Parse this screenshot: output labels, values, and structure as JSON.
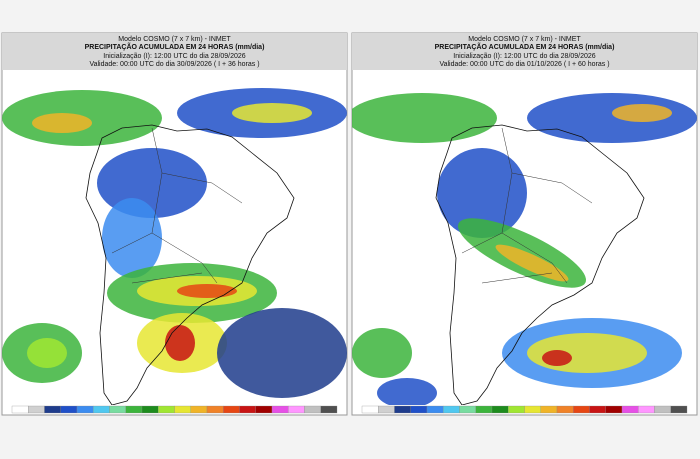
{
  "panels": [
    {
      "model": "Modelo COSMO (7 x 7 km) - INMET",
      "title": "PRECIPITAÇÃO ACUMULADA EM 24 HORAS (mm/dia)",
      "init": "Inicialização (I): 12:00 UTC do dia 28/09/2026",
      "valid": "Validade: 00:00 UTC do dia 30/09/2026 ( I + 36 horas )"
    },
    {
      "model": "Modelo COSMO (7 x 7 km) - INMET",
      "title": "PRECIPITAÇÃO ACUMULADA EM 24 HORAS (mm/dia)",
      "init": "Inicialização (I): 12:00 UTC do dia 28/09/2026",
      "valid": "Validade: 00:00 UTC do dia 01/10/2026 ( I + 60 horas )"
    }
  ]
}
